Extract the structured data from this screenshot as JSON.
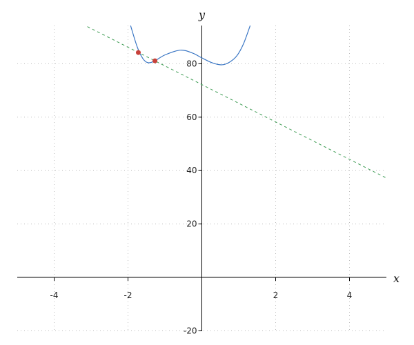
{
  "chart_data": {
    "type": "line",
    "xlabel": "x",
    "ylabel": "y",
    "xlim": [
      -5,
      5
    ],
    "ylim": [
      -20,
      94.3
    ],
    "x_ticks": [
      -4,
      -2,
      2,
      4
    ],
    "y_ticks": [
      -20,
      20,
      40,
      60,
      80
    ],
    "grid": "dotted",
    "colors": {
      "curve": "#3a76c4",
      "line": "#3a9a50",
      "points": "#c8413a"
    },
    "series": [
      {
        "style": "solid",
        "points": [
          [
            -1.93,
            94.3
          ],
          [
            -1.75,
            86.3
          ],
          [
            -1.6,
            82
          ],
          [
            -1.46,
            80.4
          ],
          [
            -1.27,
            81.1
          ],
          [
            -1.0,
            83.3
          ],
          [
            -0.58,
            85.1
          ],
          [
            -0.25,
            84
          ],
          [
            0,
            82.2
          ],
          [
            0.29,
            80.3
          ],
          [
            0.54,
            79.6
          ],
          [
            0.75,
            80.6
          ],
          [
            0.95,
            83
          ],
          [
            1.13,
            87.5
          ],
          [
            1.31,
            94.3
          ]
        ]
      },
      {
        "style": "dashed",
        "slope": -7.0,
        "intercept": 72.2,
        "x_range": [
          -3.1,
          5
        ]
      }
    ],
    "markers": [
      [
        -1.72,
        84.2
      ],
      [
        -1.27,
        81.1
      ]
    ]
  }
}
